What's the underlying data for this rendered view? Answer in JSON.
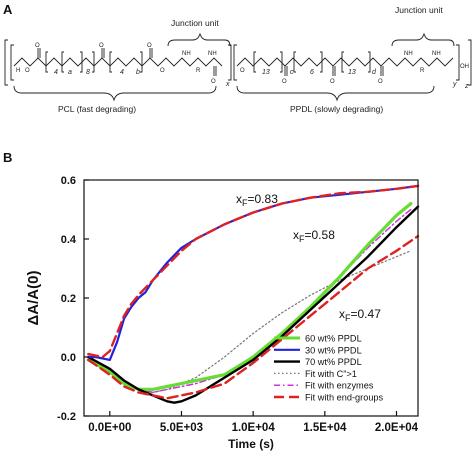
{
  "panel_a": {
    "label": "A",
    "junction_unit_1": "Junction unit",
    "junction_unit_2": "Junction unit",
    "pcl_label": "PCL (fast degrading)",
    "ppdl_label": "PPDL (slowly degrading)",
    "sub_4a": "4",
    "sub_8": "8",
    "sub_4b": "4",
    "sub_a": "a",
    "sub_b": "b",
    "sub_x": "x",
    "sub_13a": "13",
    "sub_c": "c",
    "sub_6": "6",
    "sub_13b": "13",
    "sub_d": "d",
    "sub_y": "y",
    "sub_z": "z",
    "atom_o": "O",
    "atom_nh": "NH",
    "atom_r": "R",
    "atom_oh": "OH",
    "atom_h": "H"
  },
  "panel_b": {
    "label": "B",
    "annotations": [
      {
        "text": "x",
        "sub": "F",
        "value": "=0.83"
      },
      {
        "text": "x",
        "sub": "F",
        "value": "=0.58"
      },
      {
        "text": "x",
        "sub": "F",
        "value": "=0.47"
      }
    ]
  },
  "chart_data": {
    "type": "line",
    "ylabel": "ΔA/A(0)",
    "xlabel": "Time (s)",
    "xlim": [
      -1800,
      21500
    ],
    "ylim": [
      -0.2,
      0.6
    ],
    "x_ticks": [
      0,
      5000,
      10000,
      15000,
      20000
    ],
    "x_tick_labels": [
      "0.0E+00",
      "5.0E+03",
      "1.0E+04",
      "1.5E+04",
      "2.0E+04"
    ],
    "y_ticks": [
      -0.2,
      0.0,
      0.2,
      0.4,
      0.6
    ],
    "y_tick_labels": [
      "-0.2",
      "0.0",
      "0.2",
      "0.4",
      "0.6"
    ],
    "legend_position": "bottom-right",
    "series": [
      {
        "name": "60 wt% PPDL",
        "color": "#66dd33",
        "style": "solid",
        "width": 3.2,
        "x": [
          -1500,
          0,
          1000,
          2000,
          3000,
          4000,
          5000,
          6000,
          8000,
          10000,
          12000,
          14000,
          16000,
          18000,
          19000,
          20000,
          21000
        ],
        "y": [
          -0.01,
          -0.05,
          -0.09,
          -0.11,
          -0.11,
          -0.1,
          -0.09,
          -0.08,
          -0.06,
          0.0,
          0.08,
          0.17,
          0.27,
          0.38,
          0.43,
          0.48,
          0.52
        ]
      },
      {
        "name": "30 wt% PPDL",
        "color": "#2222dd",
        "style": "solid",
        "width": 2.2,
        "x": [
          -1500,
          -1000,
          0,
          500,
          1000,
          1500,
          2000,
          2500,
          3000,
          4000,
          5000,
          6000,
          8000,
          10000,
          12000,
          14000,
          16000,
          18000,
          20000,
          21500
        ],
        "y": [
          0.0,
          0.0,
          -0.01,
          0.05,
          0.13,
          0.17,
          0.2,
          0.22,
          0.26,
          0.32,
          0.37,
          0.4,
          0.45,
          0.49,
          0.52,
          0.54,
          0.55,
          0.56,
          0.57,
          0.58
        ]
      },
      {
        "name": "70 wt% PPDL",
        "color": "#000000",
        "style": "solid",
        "width": 2.4,
        "x": [
          -1500,
          0,
          1000,
          2000,
          3000,
          4000,
          4500,
          5000,
          6000,
          7000,
          8000,
          10000,
          12000,
          14000,
          16000,
          18000,
          20000,
          21500
        ],
        "y": [
          0.0,
          -0.04,
          -0.08,
          -0.11,
          -0.13,
          -0.15,
          -0.155,
          -0.15,
          -0.13,
          -0.1,
          -0.07,
          -0.01,
          0.07,
          0.16,
          0.25,
          0.34,
          0.44,
          0.51
        ]
      },
      {
        "name": "Fit with C”>1",
        "color": "#777777",
        "style": "dotted",
        "width": 1.2,
        "x": [
          -1500,
          0,
          1000,
          2000,
          3000,
          4000,
          6000,
          8000,
          10000,
          12000,
          14000,
          16000,
          18000,
          20000,
          21000
        ],
        "y": [
          0.0,
          -0.05,
          -0.09,
          -0.11,
          -0.12,
          -0.11,
          -0.07,
          0.0,
          0.08,
          0.15,
          0.21,
          0.26,
          0.3,
          0.34,
          0.36
        ]
      },
      {
        "name": "Fit with enzymes",
        "color": "#cc33dd",
        "style": "dashdot",
        "width": 1.5,
        "x": [
          -1500,
          0,
          1000,
          2000,
          3000,
          4000,
          5000,
          6000,
          8000,
          10000,
          12000,
          14000,
          16000,
          18000,
          20000,
          21000
        ],
        "y": [
          -0.01,
          -0.05,
          -0.09,
          -0.11,
          -0.12,
          -0.11,
          -0.1,
          -0.09,
          -0.06,
          -0.01,
          0.07,
          0.16,
          0.27,
          0.37,
          0.46,
          0.5
        ]
      },
      {
        "name": "Fit with end-groups",
        "color": "#dd2222",
        "style": "dashed",
        "width": 2.4,
        "x": [
          -1500,
          0,
          1000,
          2000,
          3000,
          4000,
          5000,
          6000,
          8000,
          10000,
          12000,
          14000,
          16000,
          18000,
          20000,
          21500
        ],
        "y": [
          -0.01,
          -0.06,
          -0.1,
          -0.12,
          -0.13,
          -0.14,
          -0.13,
          -0.12,
          -0.09,
          -0.02,
          0.06,
          0.14,
          0.22,
          0.3,
          0.36,
          0.41
        ]
      },
      {
        "name": "",
        "legend": false,
        "color": "#dd2222",
        "style": "dashed",
        "width": 2.4,
        "x": [
          -1500,
          -500,
          0,
          500,
          1000,
          1500,
          2000,
          3000,
          4000,
          5000,
          6000,
          8000,
          10000,
          12000,
          14000,
          16000,
          18000,
          20000,
          21500
        ],
        "y": [
          0.01,
          0.0,
          0.02,
          0.08,
          0.14,
          0.18,
          0.21,
          0.26,
          0.31,
          0.36,
          0.4,
          0.45,
          0.49,
          0.52,
          0.54,
          0.555,
          0.56,
          0.57,
          0.58
        ]
      }
    ]
  }
}
